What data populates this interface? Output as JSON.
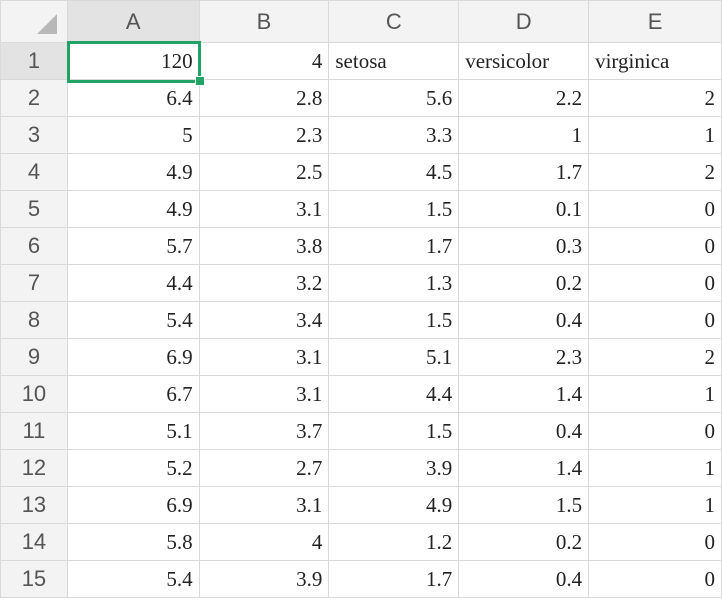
{
  "columns": [
    "A",
    "B",
    "C",
    "D",
    "E"
  ],
  "rows": [
    {
      "n": "1",
      "cells": [
        "120",
        "4",
        "setosa",
        "versicolor",
        "virginica"
      ]
    },
    {
      "n": "2",
      "cells": [
        "6.4",
        "2.8",
        "5.6",
        "2.2",
        "2"
      ]
    },
    {
      "n": "3",
      "cells": [
        "5",
        "2.3",
        "3.3",
        "1",
        "1"
      ]
    },
    {
      "n": "4",
      "cells": [
        "4.9",
        "2.5",
        "4.5",
        "1.7",
        "2"
      ]
    },
    {
      "n": "5",
      "cells": [
        "4.9",
        "3.1",
        "1.5",
        "0.1",
        "0"
      ]
    },
    {
      "n": "6",
      "cells": [
        "5.7",
        "3.8",
        "1.7",
        "0.3",
        "0"
      ]
    },
    {
      "n": "7",
      "cells": [
        "4.4",
        "3.2",
        "1.3",
        "0.2",
        "0"
      ]
    },
    {
      "n": "8",
      "cells": [
        "5.4",
        "3.4",
        "1.5",
        "0.4",
        "0"
      ]
    },
    {
      "n": "9",
      "cells": [
        "6.9",
        "3.1",
        "5.1",
        "2.3",
        "2"
      ]
    },
    {
      "n": "10",
      "cells": [
        "6.7",
        "3.1",
        "4.4",
        "1.4",
        "1"
      ]
    },
    {
      "n": "11",
      "cells": [
        "5.1",
        "3.7",
        "1.5",
        "0.4",
        "0"
      ]
    },
    {
      "n": "12",
      "cells": [
        "5.2",
        "2.7",
        "3.9",
        "1.4",
        "1"
      ]
    },
    {
      "n": "13",
      "cells": [
        "6.9",
        "3.1",
        "4.9",
        "1.5",
        "1"
      ]
    },
    {
      "n": "14",
      "cells": [
        "5.8",
        "4",
        "1.2",
        "0.2",
        "0"
      ]
    },
    {
      "n": "15",
      "cells": [
        "5.4",
        "3.9",
        "1.7",
        "0.4",
        "0"
      ]
    }
  ],
  "selection": {
    "cell": "A1"
  },
  "colors": {
    "selection": "#21a366",
    "header_bg": "#f3f3f3",
    "gridline": "#d9d9d9"
  }
}
